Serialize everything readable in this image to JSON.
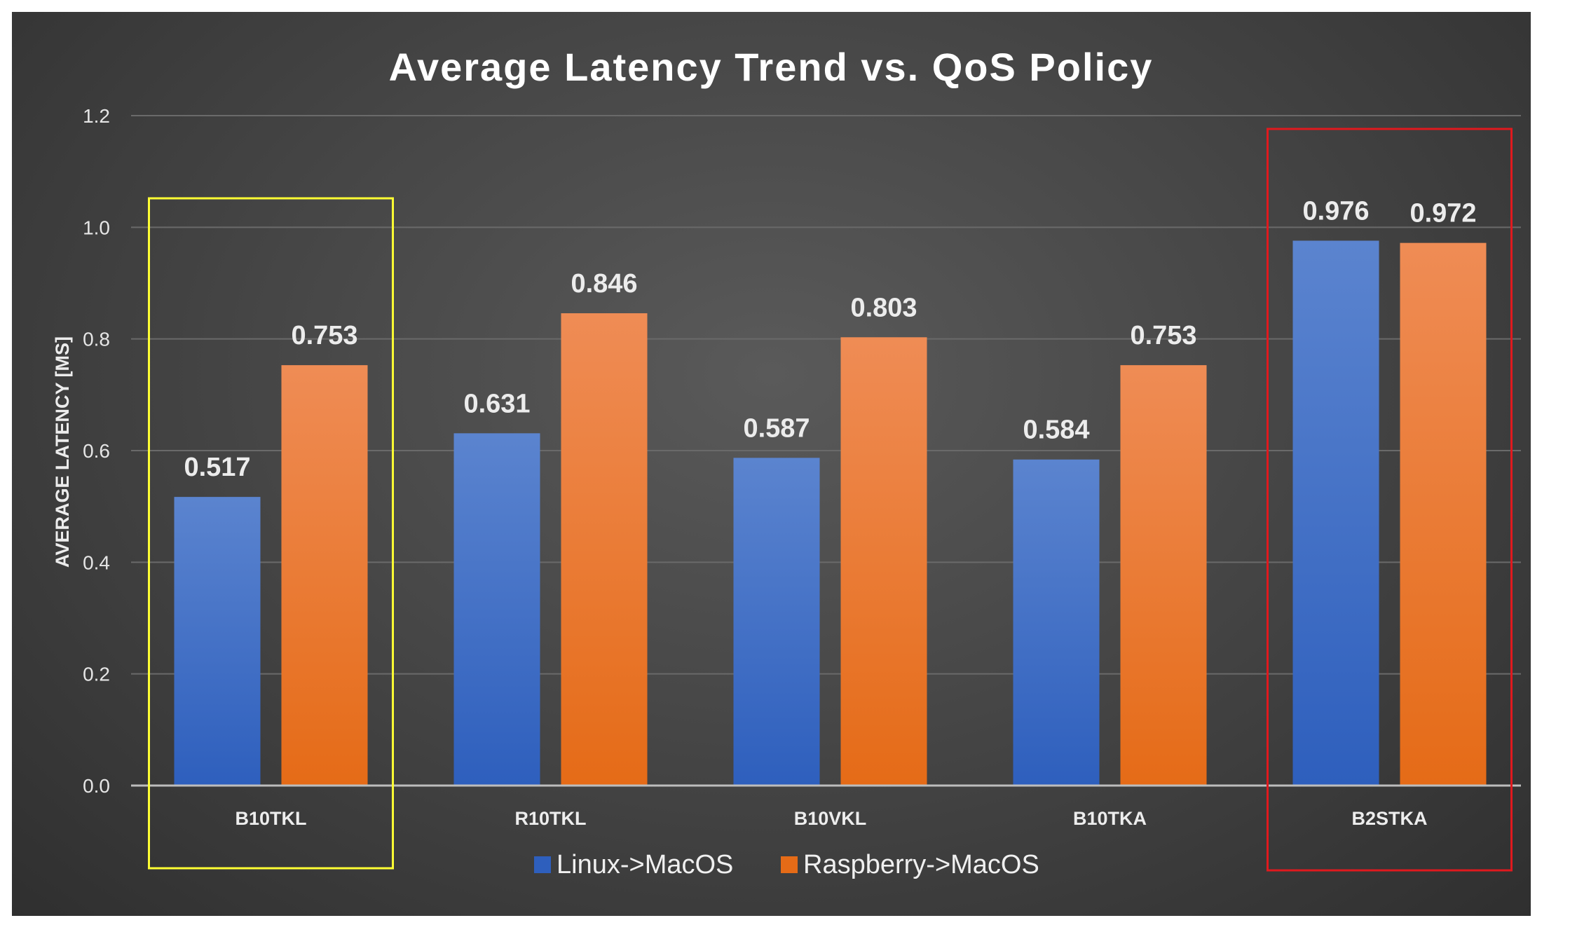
{
  "chart_data": {
    "type": "bar",
    "title": "Average Latency Trend vs. QoS Policy",
    "xlabel": "",
    "ylabel": "AVERAGE LATENCY [MS]",
    "ylim": [
      0,
      1.2
    ],
    "yticks": [
      "0.0",
      "0.2",
      "0.4",
      "0.6",
      "0.8",
      "1.0",
      "1.2"
    ],
    "categories": [
      "B10TKL",
      "R10TKL",
      "B10VKL",
      "B10TKA",
      "B2STKA"
    ],
    "series": [
      {
        "name": "Linux->MacOS",
        "values": [
          0.517,
          0.631,
          0.587,
          0.584,
          0.976
        ],
        "labels": [
          "0.517",
          "0.631",
          "0.587",
          "0.584",
          "0.976"
        ]
      },
      {
        "name": "Raspberry->MacOS",
        "values": [
          0.753,
          0.846,
          0.803,
          0.753,
          0.972
        ],
        "labels": [
          "0.753",
          "0.846",
          "0.803",
          "0.753",
          "0.972"
        ]
      }
    ],
    "grid": true,
    "legend_position": "bottom",
    "highlights": [
      {
        "category": "B10TKL",
        "color": "#ffff33"
      },
      {
        "category": "B2STKA",
        "color": "#e0191e"
      }
    ]
  },
  "colors": {
    "series_0_top": "#5b84cf",
    "series_0_bottom": "#2e5fbd",
    "series_1_top": "#ef8c55",
    "series_1_bottom": "#e56b17"
  }
}
